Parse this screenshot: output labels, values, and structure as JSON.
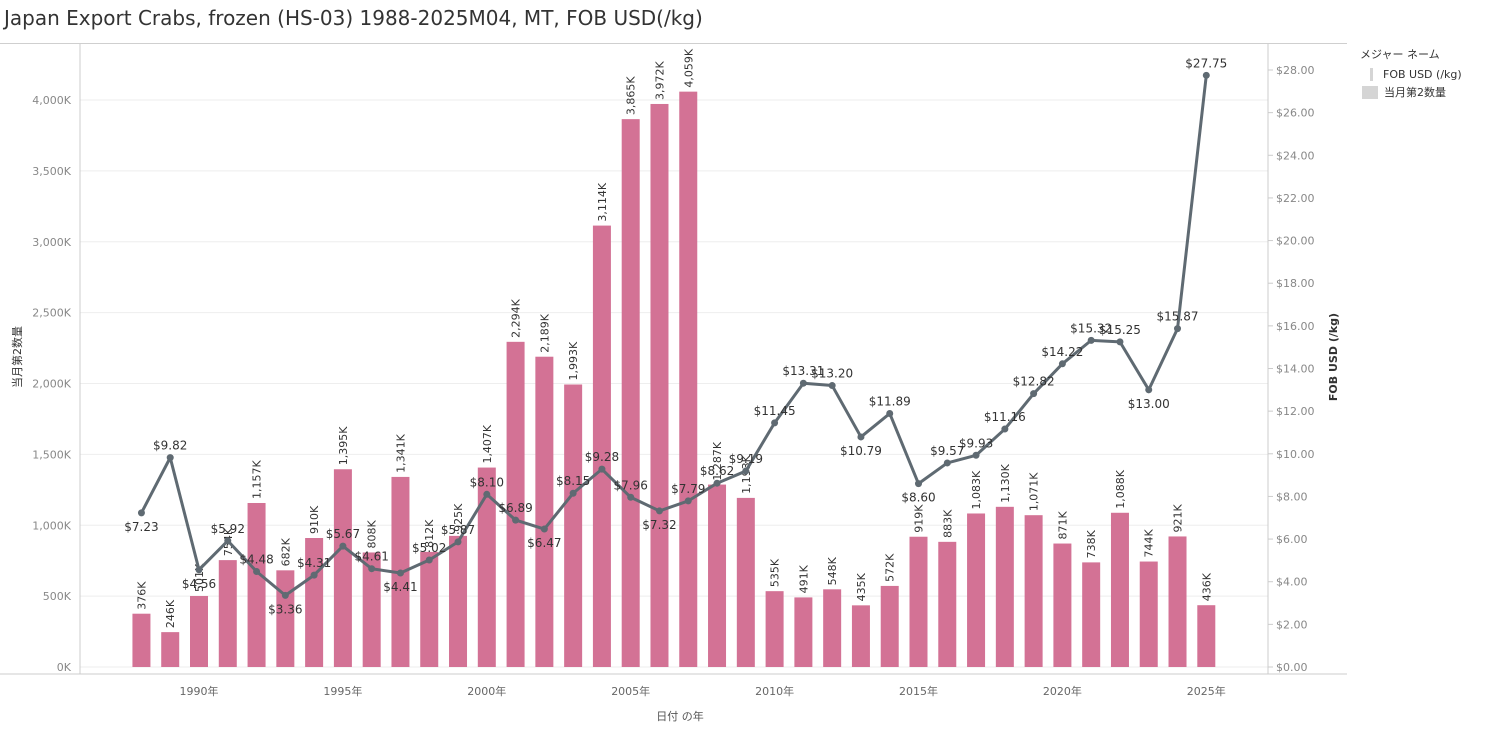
{
  "title": "Japan Export Crabs, frozen (HS-03) 1988-2025M04, MT, FOB USD(/kg)",
  "legend": {
    "title": "メジャー ネーム",
    "items": [
      {
        "label": "FOB USD (/kg)",
        "kind": "line"
      },
      {
        "label": "当月第2数量",
        "kind": "bar"
      }
    ]
  },
  "colors": {
    "bar": "#d37295",
    "line": "#5f6a72",
    "grid": "#eeeeee",
    "axis": "#cccccc",
    "tick": "#888888"
  },
  "chart_data": {
    "type": "bar+line",
    "xlabel": "日付 の年",
    "ylabel_left": "当月第2数量",
    "ylabel_right": "FOB USD (/kg)",
    "ylim_left": [
      0,
      4400000
    ],
    "ylim_right": [
      0,
      29
    ],
    "grid": true,
    "legend_position": "right",
    "left_ticks": [
      0,
      500000,
      1000000,
      1500000,
      2000000,
      2500000,
      3000000,
      3500000,
      4000000
    ],
    "left_tick_labels": [
      "0K",
      "500K",
      "1,000K",
      "1,500K",
      "2,000K",
      "2,500K",
      "3,000K",
      "3,500K",
      "4,000K"
    ],
    "right_ticks": [
      0,
      2,
      4,
      6,
      8,
      10,
      12,
      14,
      16,
      18,
      20,
      22,
      24,
      26,
      28
    ],
    "right_tick_labels": [
      "$0.00",
      "$2.00",
      "$4.00",
      "$6.00",
      "$8.00",
      "$10.00",
      "$12.00",
      "$14.00",
      "$16.00",
      "$18.00",
      "$20.00",
      "$22.00",
      "$24.00",
      "$26.00",
      "$28.00"
    ],
    "x_ticks": [
      1990,
      1995,
      2000,
      2005,
      2010,
      2015,
      2020,
      2025
    ],
    "x_tick_labels": [
      "1990年",
      "1995年",
      "2000年",
      "2005年",
      "2010年",
      "2015年",
      "2020年",
      "2025年"
    ],
    "years": [
      1988,
      1989,
      1990,
      1991,
      1992,
      1993,
      1994,
      1995,
      1996,
      1997,
      1998,
      1999,
      2000,
      2001,
      2002,
      2003,
      2004,
      2005,
      2006,
      2007,
      2008,
      2009,
      2010,
      2011,
      2012,
      2013,
      2014,
      2015,
      2016,
      2017,
      2018,
      2019,
      2020,
      2021,
      2022,
      2023,
      2024,
      2025
    ],
    "series": [
      {
        "name": "当月第2数量",
        "kind": "bar",
        "values": [
          376000,
          246000,
          501000,
          754000,
          1157000,
          682000,
          910000,
          1395000,
          808000,
          1341000,
          812000,
          925000,
          1407000,
          2294000,
          2189000,
          1993000,
          3114000,
          3865000,
          3972000,
          4059000,
          1287000,
          1193000,
          535000,
          491000,
          548000,
          435000,
          572000,
          919000,
          883000,
          1083000,
          1130000,
          1071000,
          871000,
          738000,
          1088000,
          744000,
          921000,
          436000
        ],
        "labels": [
          "376K",
          "246K",
          "501K",
          "754K",
          "1,157K",
          "682K",
          "910K",
          "1,395K",
          "808K",
          "1,341K",
          "812K",
          "925K",
          "1,407K",
          "2,294K",
          "2,189K",
          "1,993K",
          "3,114K",
          "3,865K",
          "3,972K",
          "4,059K",
          "1,287K",
          "1,193K",
          "535K",
          "491K",
          "548K",
          "435K",
          "572K",
          "919K",
          "883K",
          "1,083K",
          "1,130K",
          "1,071K",
          "871K",
          "738K",
          "1,088K",
          "744K",
          "921K",
          "436K"
        ]
      },
      {
        "name": "FOB USD (/kg)",
        "kind": "line",
        "values": [
          7.23,
          9.82,
          4.56,
          5.92,
          4.48,
          3.36,
          4.31,
          5.67,
          4.61,
          4.41,
          5.02,
          5.87,
          8.1,
          6.89,
          6.47,
          8.15,
          9.28,
          7.96,
          7.32,
          7.79,
          8.62,
          9.19,
          11.45,
          13.31,
          13.2,
          10.79,
          11.89,
          8.6,
          9.57,
          9.93,
          11.16,
          12.82,
          14.22,
          15.32,
          15.25,
          13.0,
          15.87,
          27.75
        ],
        "labels": [
          "$7.23",
          "$9.82",
          "$4.56",
          "$5.92",
          "$4.48",
          "$3.36",
          "$4.31",
          "$5.67",
          "$4.61",
          "$4.41",
          "$5.02",
          "$5.87",
          "$8.10",
          "$6.89",
          "$6.47",
          "$8.15",
          "$9.28",
          "$7.96",
          "$7.32",
          "$7.79",
          "$8.62",
          "$9.19",
          "$11.45",
          "$13.31",
          "$13.20",
          "$10.79",
          "$11.89",
          "$8.60",
          "$9.57",
          "$9.93",
          "$11.16",
          "$12.82",
          "$14.22",
          "$15.32",
          "$15.25",
          "$13.00",
          "$15.87",
          "$27.75"
        ]
      }
    ]
  }
}
